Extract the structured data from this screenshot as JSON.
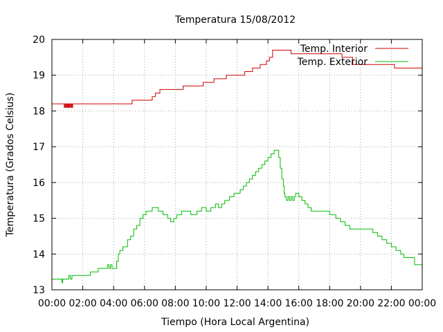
{
  "chart_data": {
    "type": "line",
    "title": "Temperatura 15/08/2012",
    "xlabel": "Tiempo (Hora Local Argentina)",
    "ylabel": "Temperatura (Grados Celsius)",
    "xlim": [
      0,
      24
    ],
    "ylim": [
      13,
      20
    ],
    "x_ticks": [
      "00:00",
      "02:00",
      "04:00",
      "06:00",
      "08:00",
      "10:00",
      "12:00",
      "14:00",
      "16:00",
      "18:00",
      "20:00",
      "22:00",
      "00:00"
    ],
    "y_ticks": [
      "13",
      "14",
      "15",
      "16",
      "17",
      "18",
      "19",
      "20"
    ],
    "grid": true,
    "legend_position": "top-right",
    "series": [
      {
        "name": "Temp. Interior",
        "color": "#cc0000",
        "x": [
          0,
          0.8,
          0.85,
          0.9,
          0.95,
          1.0,
          1.05,
          1.1,
          1.15,
          1.2,
          1.25,
          1.3,
          1.35,
          1.4,
          5.2,
          6.5,
          6.7,
          7.0,
          7.5,
          8.5,
          9.8,
          10.5,
          11.3,
          12.0,
          12.5,
          13.0,
          13.5,
          13.9,
          14.1,
          14.3,
          15.5,
          18.8,
          19.5,
          20.7,
          21.0,
          22.2,
          24.0
        ],
        "y": [
          18.2,
          18.1,
          18.2,
          18.1,
          18.2,
          18.1,
          18.2,
          18.1,
          18.2,
          18.1,
          18.2,
          18.1,
          18.2,
          18.2,
          18.3,
          18.4,
          18.5,
          18.6,
          18.6,
          18.7,
          18.8,
          18.9,
          19.0,
          19.0,
          19.1,
          19.2,
          19.3,
          19.4,
          19.5,
          19.7,
          19.6,
          19.5,
          19.3,
          19.3,
          19.3,
          19.2,
          19.2
        ]
      },
      {
        "name": "Temp. Exterior",
        "color": "#00bb00",
        "x": [
          0,
          0.6,
          0.65,
          0.7,
          1.0,
          1.1,
          1.2,
          1.3,
          1.7,
          2.0,
          2.5,
          3.0,
          3.5,
          3.6,
          3.7,
          3.8,
          3.9,
          4.0,
          4.2,
          4.3,
          4.4,
          4.6,
          4.9,
          5.1,
          5.3,
          5.5,
          5.7,
          5.9,
          6.1,
          6.3,
          6.5,
          6.7,
          6.9,
          7.2,
          7.5,
          7.7,
          7.9,
          8.1,
          8.4,
          8.7,
          9.0,
          9.4,
          9.7,
          10.0,
          10.3,
          10.6,
          10.8,
          11.0,
          11.2,
          11.5,
          11.8,
          12.0,
          12.2,
          12.4,
          12.6,
          12.8,
          13.0,
          13.2,
          13.4,
          13.6,
          13.8,
          14.0,
          14.2,
          14.4,
          14.5,
          14.6,
          14.7,
          14.8,
          14.9,
          15.0,
          15.05,
          15.1,
          15.2,
          15.3,
          15.4,
          15.5,
          15.6,
          15.7,
          15.8,
          16.0,
          16.2,
          16.4,
          16.6,
          16.8,
          17.0,
          17.3,
          17.6,
          18.0,
          18.4,
          18.7,
          19.0,
          19.3,
          19.6,
          20.0,
          20.4,
          20.8,
          21.1,
          21.4,
          21.7,
          22.0,
          22.3,
          22.6,
          22.8,
          23.0,
          23.5,
          24.0
        ],
        "y": [
          13.3,
          13.3,
          13.2,
          13.3,
          13.3,
          13.4,
          13.3,
          13.4,
          13.4,
          13.4,
          13.5,
          13.6,
          13.6,
          13.7,
          13.6,
          13.7,
          13.6,
          13.6,
          13.8,
          14.0,
          14.1,
          14.2,
          14.4,
          14.5,
          14.7,
          14.8,
          15.0,
          15.1,
          15.2,
          15.2,
          15.3,
          15.3,
          15.2,
          15.1,
          15.0,
          14.9,
          15.0,
          15.1,
          15.2,
          15.2,
          15.1,
          15.2,
          15.3,
          15.2,
          15.3,
          15.4,
          15.3,
          15.4,
          15.5,
          15.6,
          15.7,
          15.7,
          15.8,
          15.9,
          16.0,
          16.1,
          16.2,
          16.3,
          16.4,
          16.5,
          16.6,
          16.7,
          16.8,
          16.9,
          16.9,
          16.9,
          16.7,
          16.4,
          16.1,
          15.9,
          15.7,
          15.6,
          15.5,
          15.6,
          15.5,
          15.6,
          15.5,
          15.6,
          15.7,
          15.6,
          15.5,
          15.4,
          15.3,
          15.2,
          15.2,
          15.2,
          15.2,
          15.1,
          15.0,
          14.9,
          14.8,
          14.7,
          14.7,
          14.7,
          14.7,
          14.6,
          14.5,
          14.4,
          14.3,
          14.2,
          14.1,
          14.0,
          13.9,
          13.9,
          13.7,
          13.7
        ]
      }
    ]
  }
}
